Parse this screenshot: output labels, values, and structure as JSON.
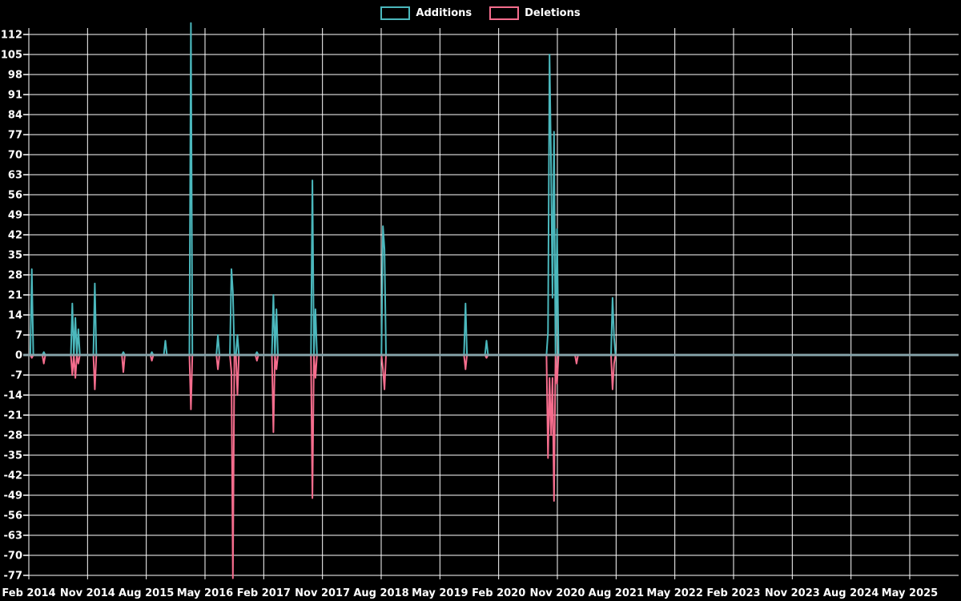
{
  "legend": {
    "items": [
      {
        "label": "Additions",
        "color": "#4bb8bd"
      },
      {
        "label": "Deletions",
        "color": "#f56d8d"
      }
    ]
  },
  "chart_data": {
    "type": "line",
    "title": "",
    "xlabel": "",
    "ylabel": "",
    "grid": true,
    "legend_position": "top-center",
    "background_color": "#000000",
    "grid_color": "#ffffff",
    "zero_line_color": "#8ba4ab",
    "text_color": "#ffffff",
    "y_axis": {
      "min": -77,
      "max": 112,
      "tick_step": 7,
      "tick_labels": [
        112,
        105,
        98,
        91,
        84,
        77,
        70,
        63,
        56,
        49,
        42,
        35,
        28,
        21,
        14,
        7,
        0,
        -7,
        -14,
        -21,
        -28,
        -35,
        -42,
        -49,
        -56,
        -63,
        -70,
        -77
      ]
    },
    "x_axis": {
      "start_date": "2014-02-01",
      "end_date": "2025-12-15",
      "tick_interval_months": 9,
      "tick_labels": [
        "Feb 2014",
        "Nov 2014",
        "Aug 2015",
        "May 2016",
        "Feb 2017",
        "Nov 2017",
        "Aug 2018",
        "May 2019",
        "Feb 2020",
        "Nov 2020",
        "Aug 2021",
        "May 2022",
        "Feb 2023",
        "Nov 2023",
        "Aug 2024",
        "May 2025"
      ]
    },
    "series": [
      {
        "name": "Additions",
        "key": "additions",
        "color": "#4bb8bd"
      },
      {
        "name": "Deletions",
        "key": "deletions",
        "color": "#f56d8d"
      }
    ],
    "baseline_value": 0,
    "points": [
      {
        "date": "2014-02-15",
        "additions": 30,
        "deletions": -1
      },
      {
        "date": "2014-04-10",
        "additions": 1,
        "deletions": -3
      },
      {
        "date": "2014-08-22",
        "additions": 18,
        "deletions": -7
      },
      {
        "date": "2014-09-05",
        "additions": 13,
        "deletions": -8
      },
      {
        "date": "2014-09-18",
        "additions": 9,
        "deletions": -3
      },
      {
        "date": "2014-12-03",
        "additions": 25,
        "deletions": -12
      },
      {
        "date": "2015-04-15",
        "additions": 1,
        "deletions": -6
      },
      {
        "date": "2015-08-28",
        "additions": 1,
        "deletions": -2
      },
      {
        "date": "2015-11-03",
        "additions": 5,
        "deletions": 0
      },
      {
        "date": "2016-02-25",
        "additions": 116,
        "deletions": -19
      },
      {
        "date": "2016-07-03",
        "additions": 7,
        "deletions": -5
      },
      {
        "date": "2016-09-01",
        "additions": 30,
        "deletions": -6
      },
      {
        "date": "2016-09-11",
        "additions": 22,
        "deletions": -78
      },
      {
        "date": "2016-09-28",
        "additions": 7,
        "deletions": -14
      },
      {
        "date": "2017-01-03",
        "additions": 1,
        "deletions": -2
      },
      {
        "date": "2017-03-20",
        "additions": 21,
        "deletions": -27
      },
      {
        "date": "2017-04-01",
        "additions": 16,
        "deletions": -5
      },
      {
        "date": "2017-09-17",
        "additions": 61,
        "deletions": -50
      },
      {
        "date": "2017-09-28",
        "additions": 16,
        "deletions": -8
      },
      {
        "date": "2018-08-08",
        "additions": 45,
        "deletions": -5
      },
      {
        "date": "2018-08-17",
        "additions": 37,
        "deletions": -12
      },
      {
        "date": "2019-09-01",
        "additions": 18,
        "deletions": -5
      },
      {
        "date": "2019-12-06",
        "additions": 5,
        "deletions": -1
      },
      {
        "date": "2020-09-20",
        "additions": 8,
        "deletions": -36
      },
      {
        "date": "2020-09-29",
        "additions": 105,
        "deletions": -8
      },
      {
        "date": "2020-10-05",
        "additions": 67,
        "deletions": -28
      },
      {
        "date": "2020-10-12",
        "additions": 20,
        "deletions": -8
      },
      {
        "date": "2020-10-19",
        "additions": 78,
        "deletions": -51
      },
      {
        "date": "2020-11-03",
        "additions": 44,
        "deletions": -10
      },
      {
        "date": "2021-01-29",
        "additions": 0,
        "deletions": -3
      },
      {
        "date": "2021-07-14",
        "additions": 20,
        "deletions": -12
      },
      {
        "date": "2021-07-26",
        "additions": 6,
        "deletions": -3
      }
    ]
  }
}
